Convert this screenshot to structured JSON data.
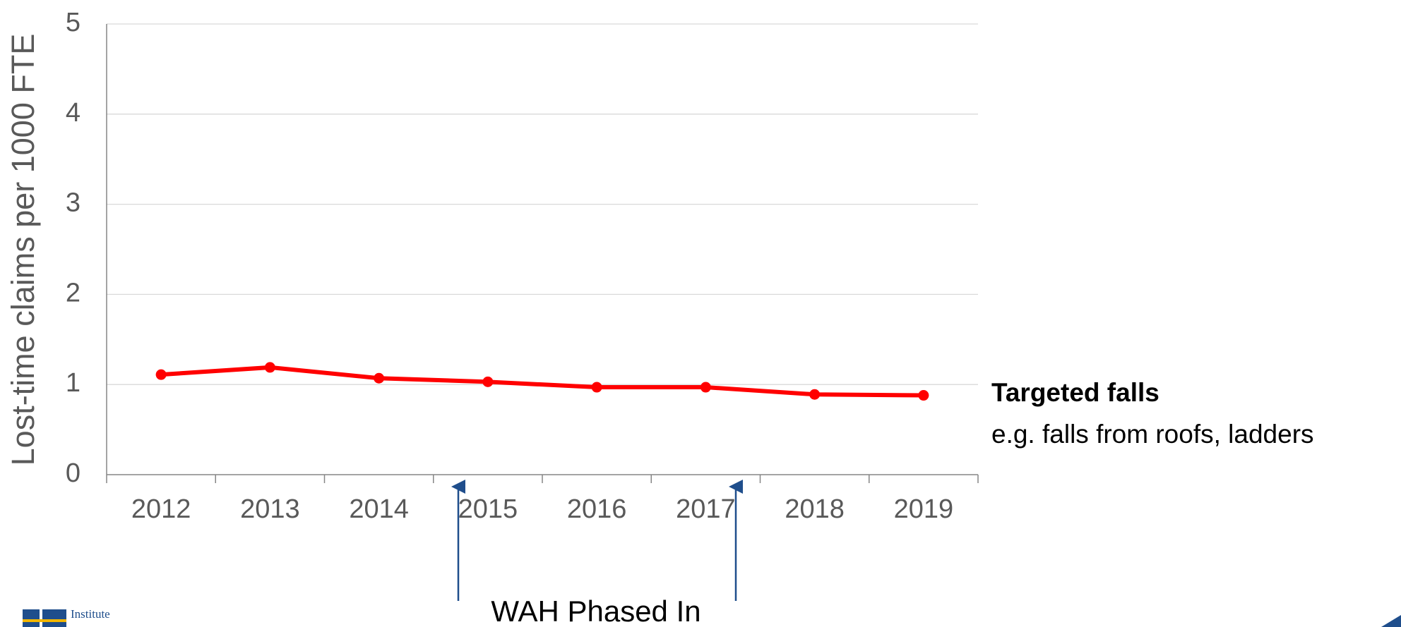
{
  "chart_data": {
    "type": "line",
    "y_label": "Lost-time claims per 1000 FTE",
    "categories": [
      "2012",
      "2013",
      "2014",
      "2015",
      "2016",
      "2017",
      "2018",
      "2019"
    ],
    "values": [
      1.11,
      1.19,
      1.07,
      1.03,
      0.97,
      0.97,
      0.89,
      0.88
    ],
    "color": "#ff0000",
    "ylim": [
      0,
      5
    ],
    "yticks": [
      0,
      1,
      2,
      3,
      4,
      5
    ],
    "grid": true,
    "annotations": {
      "label_title": "Targeted falls",
      "label_text": "e.g. falls from roofs, ladders",
      "arrow_text": "WAH Phased In"
    },
    "logo_text": "Institute"
  }
}
